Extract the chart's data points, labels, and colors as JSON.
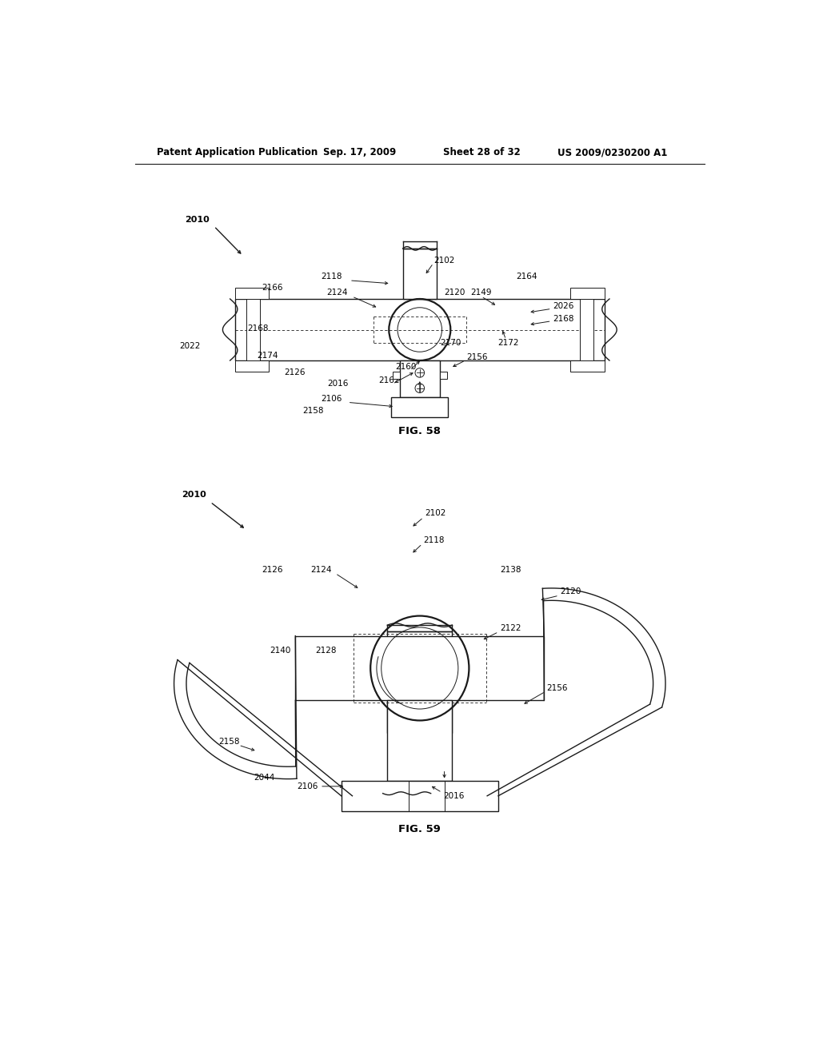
{
  "bg_color": "#ffffff",
  "line_color": "#1a1a1a",
  "header_text": "Patent Application Publication",
  "header_date": "Sep. 17, 2009",
  "header_sheet": "Sheet 28 of 32",
  "header_patent": "US 2009/0230200 A1",
  "fig58_caption": "FIG. 58",
  "fig59_caption": "FIG. 59"
}
